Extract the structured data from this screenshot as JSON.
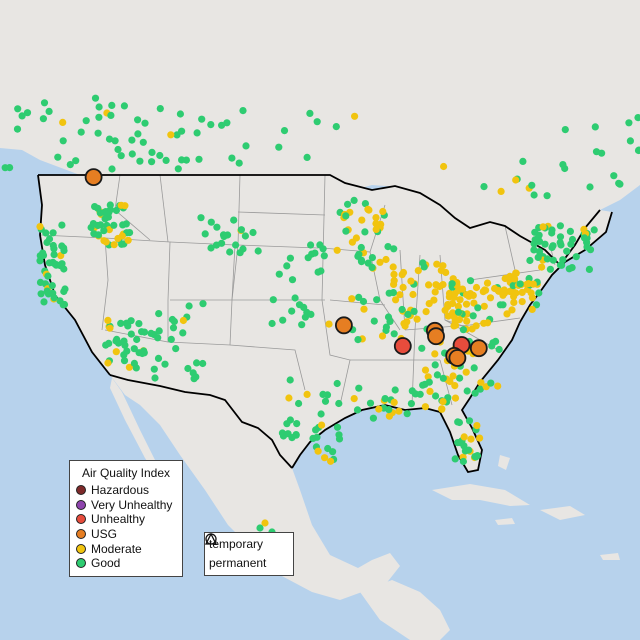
{
  "legend": {
    "title": "Air Quality Index",
    "categories": [
      {
        "label": "Hazardous",
        "color": "#7e2a2a"
      },
      {
        "label": "Very Unhealthy",
        "color": "#8e44ad"
      },
      {
        "label": "Unhealthy",
        "color": "#e74c3c"
      },
      {
        "label": "USG",
        "color": "#e67e22"
      },
      {
        "label": "Moderate",
        "color": "#f1c40f"
      },
      {
        "label": "Good",
        "color": "#2ecc71"
      }
    ]
  },
  "monitor_types": [
    {
      "label": "temporary",
      "shape": "circle"
    },
    {
      "label": "permanent",
      "shape": "triangle"
    }
  ],
  "map": {
    "land_color": "#e8e6e3",
    "water_color": "#b7d2ec",
    "border_color": "#000000",
    "state_line_color": "#9a9a9a"
  },
  "highlighted_sites": [
    {
      "category": "USG",
      "lat": 48.9,
      "lon": -119.4
    },
    {
      "category": "USG",
      "lat": 35.3,
      "lon": -96.0
    },
    {
      "category": "USG",
      "lat": 34.8,
      "lon": -87.5
    },
    {
      "category": "USG",
      "lat": 34.3,
      "lon": -87.4
    },
    {
      "category": "Unhealthy",
      "lat": 33.4,
      "lon": -90.5
    },
    {
      "category": "Unhealthy",
      "lat": 33.5,
      "lon": -85.0
    },
    {
      "category": "USG",
      "lat": 32.5,
      "lon": -85.7
    },
    {
      "category": "USG",
      "lat": 32.3,
      "lon": -85.4
    },
    {
      "category": "USG",
      "lat": 33.2,
      "lon": -83.4
    }
  ]
}
